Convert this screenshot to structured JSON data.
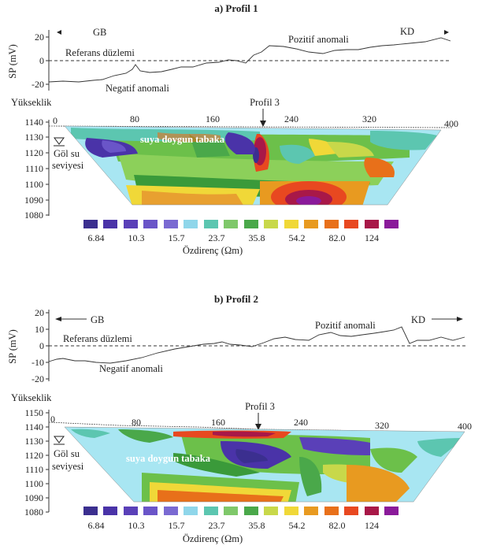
{
  "panels": [
    {
      "id": "profile1",
      "title": "a) Profil 1",
      "sp": {
        "ylabel": "SP (mV)",
        "yticks": [
          "20",
          "0",
          "-20"
        ],
        "left_dir": "GB",
        "right_dir": "KD",
        "ref_label": "Referans düzlemi",
        "pos_label": "Pozitif anomali",
        "neg_label": "Negatif anomali"
      },
      "section": {
        "elev_label": "Yükseklik",
        "yticks": [
          "1140",
          "1130",
          "1120",
          "1110",
          "1100",
          "1090",
          "1080"
        ],
        "xticks": [
          "0",
          "80",
          "160",
          "240",
          "320",
          "400"
        ],
        "marker_label": "Profil 3",
        "lake_label_1": "Göl su",
        "lake_label_2": "seviyesi",
        "layer_label": "suya doygun tabaka"
      },
      "legend": {
        "values": [
          "6.84",
          "10.3",
          "15.7",
          "23.7",
          "35.8",
          "54.2",
          "82.0",
          "124"
        ],
        "title": "Özdirenç (Ωm)"
      }
    },
    {
      "id": "profile2",
      "title": "b) Profil 2",
      "sp": {
        "ylabel": "SP (mV)",
        "yticks": [
          "20",
          "10",
          "0",
          "-10",
          "-20"
        ],
        "left_dir": "GB",
        "right_dir": "KD",
        "ref_label": "Referans düzlemi",
        "pos_label": "Pozitif anomali",
        "neg_label": "Negatif anomali"
      },
      "section": {
        "elev_label": "Yükseklik",
        "yticks": [
          "1150",
          "1140",
          "1130",
          "1120",
          "1110",
          "1100",
          "1090",
          "1080"
        ],
        "xticks": [
          "0",
          "80",
          "160",
          "240",
          "320",
          "400"
        ],
        "marker_label": "Profil 3",
        "lake_label_1": "Göl su",
        "lake_label_2": "seviyesi",
        "layer_label": "suya doygun tabaka"
      },
      "legend": {
        "values": [
          "6.84",
          "10.3",
          "15.7",
          "23.7",
          "35.8",
          "54.2",
          "82.0",
          "124"
        ],
        "title": "Özdirenç (Ωm)"
      }
    }
  ],
  "colors": {
    "scale": [
      "#3b2f8f",
      "#4a33a8",
      "#5a40b8",
      "#6a55c8",
      "#8fd6ea",
      "#5cc6b0",
      "#7fc86a",
      "#4aa84a",
      "#c8d84a",
      "#f0d838",
      "#e89a20",
      "#e8701a",
      "#e84820",
      "#a81848",
      "#8a1a9a"
    ],
    "bg_light": "#a8e6f2",
    "green": "#6cc04a",
    "dark_green": "#3a9a3a",
    "yellow": "#f0d838",
    "orange": "#e89a20",
    "red": "#d83020",
    "magenta": "#c01870",
    "purple": "#4a38a8"
  }
}
